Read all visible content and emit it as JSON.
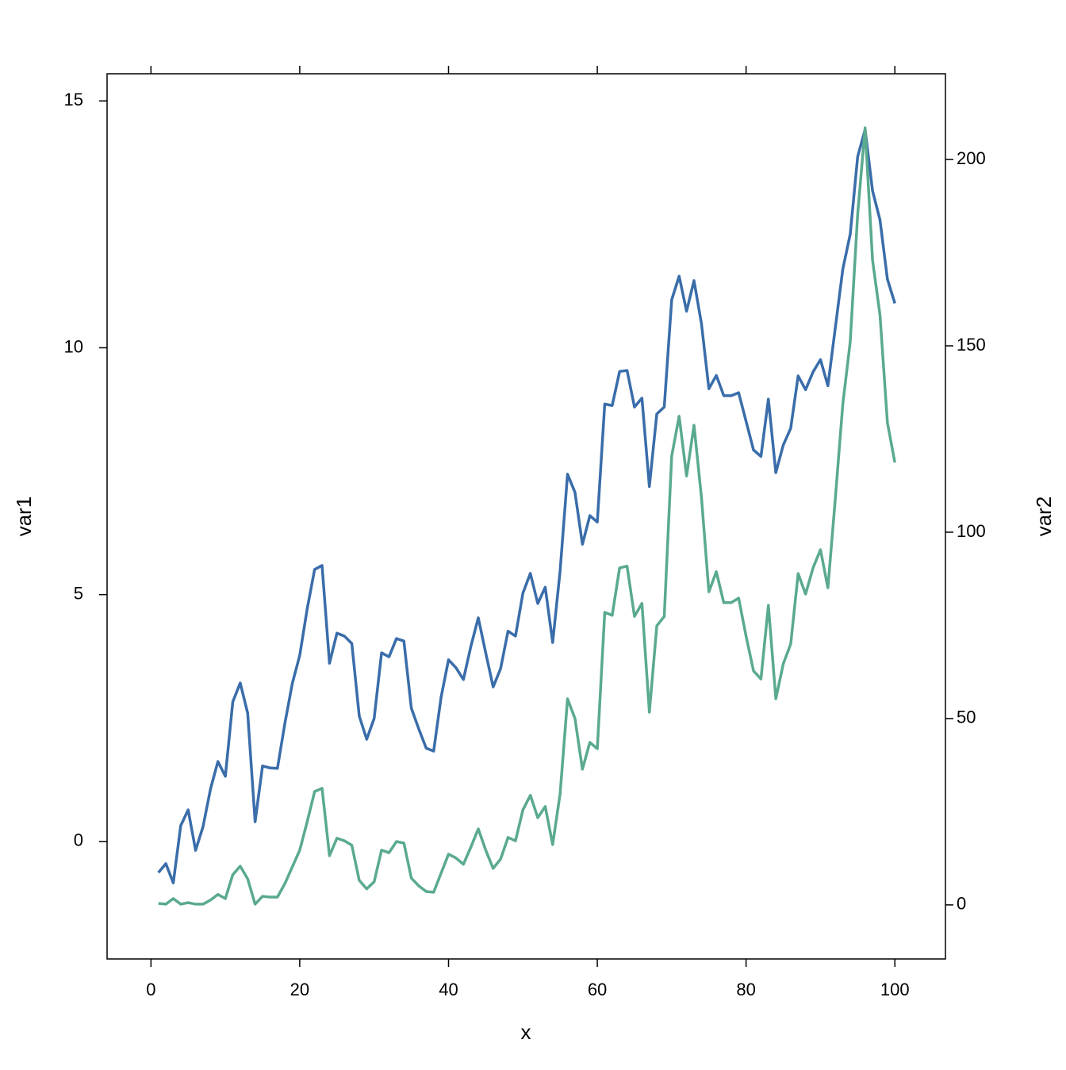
{
  "chart_data": {
    "type": "line",
    "x_label": "x",
    "y_label": "var1",
    "y2_label": "var2",
    "x": [
      1,
      2,
      3,
      4,
      5,
      6,
      7,
      8,
      9,
      10,
      11,
      12,
      13,
      14,
      15,
      16,
      17,
      18,
      19,
      20,
      21,
      22,
      23,
      24,
      25,
      26,
      27,
      28,
      29,
      30,
      31,
      32,
      33,
      34,
      35,
      36,
      37,
      38,
      39,
      40,
      41,
      42,
      43,
      44,
      45,
      46,
      47,
      48,
      49,
      50,
      51,
      52,
      53,
      54,
      55,
      56,
      57,
      58,
      59,
      60,
      61,
      62,
      63,
      64,
      65,
      66,
      67,
      68,
      69,
      70,
      71,
      72,
      73,
      74,
      75,
      76,
      77,
      78,
      79,
      80,
      81,
      82,
      83,
      84,
      85,
      86,
      87,
      88,
      89,
      90,
      91,
      92,
      93,
      94,
      95,
      96,
      97,
      98,
      99,
      100
    ],
    "series": [
      {
        "name": "var1",
        "color": "#3a6daa",
        "values": [
          -0.63,
          -0.45,
          -0.84,
          0.32,
          0.64,
          -0.18,
          0.3,
          1.06,
          1.62,
          1.32,
          2.83,
          3.21,
          2.6,
          0.4,
          1.53,
          1.49,
          1.48,
          2.39,
          3.2,
          3.77,
          4.71,
          5.51,
          5.59,
          3.61,
          4.22,
          4.16,
          4.01,
          2.54,
          2.07,
          2.49,
          3.82,
          3.74,
          4.11,
          4.06,
          2.7,
          2.28,
          1.89,
          1.83,
          2.92,
          3.68,
          3.52,
          3.28,
          3.95,
          4.53,
          3.82,
          3.13,
          3.5,
          4.26,
          4.16,
          5.03,
          5.43,
          4.82,
          5.15,
          4.03,
          5.48,
          7.44,
          7.07,
          6.02,
          6.6,
          6.47,
          8.86,
          8.83,
          9.52,
          9.54,
          8.8,
          8.98,
          7.19,
          8.66,
          8.8,
          10.97,
          11.45,
          10.74,
          11.36,
          10.49,
          9.17,
          9.44,
          9.03,
          9.03,
          9.09,
          8.51,
          7.93,
          7.8,
          8.96,
          7.47,
          8.03,
          8.37,
          9.43,
          9.15,
          9.51,
          9.76,
          9.23,
          10.41,
          11.59,
          12.3,
          13.87,
          14.42,
          13.18,
          12.59,
          11.39,
          10.9
        ]
      },
      {
        "name": "var2",
        "color": "#5aaa8e",
        "axis": "y2",
        "values": [
          0.4,
          0.2,
          1.7,
          0.2,
          0.6,
          0.2,
          0.2,
          1.3,
          2.8,
          1.7,
          8.1,
          10.4,
          7.0,
          0.2,
          2.3,
          2.1,
          2.1,
          5.7,
          10.2,
          14.7,
          22.3,
          30.4,
          31.3,
          13.2,
          17.9,
          17.2,
          16.0,
          6.6,
          4.3,
          6.2,
          14.7,
          14.0,
          17.0,
          16.6,
          7.2,
          5.1,
          3.6,
          3.4,
          8.5,
          13.6,
          12.6,
          10.9,
          15.5,
          20.4,
          14.7,
          9.8,
          12.3,
          18.1,
          17.2,
          25.5,
          29.4,
          23.4,
          26.4,
          16.2,
          29.8,
          55.3,
          50.0,
          36.4,
          43.6,
          41.9,
          78.5,
          77.7,
          90.4,
          90.9,
          77.4,
          80.9,
          51.7,
          74.9,
          77.4,
          120.4,
          131.1,
          115.1,
          128.7,
          109.4,
          84.0,
          89.4,
          81.1,
          81.1,
          82.3,
          72.1,
          62.8,
          60.6,
          80.4,
          55.3,
          64.7,
          70.0,
          88.9,
          83.4,
          90.4,
          95.3,
          85.1,
          109.1,
          134.3,
          151.1,
          185.3,
          208.5,
          173.0,
          158.3,
          129.4,
          118.7
        ]
      }
    ],
    "xlim": [
      -5.9,
      106.8
    ],
    "xticks": [
      0,
      20,
      40,
      60,
      80,
      100
    ],
    "ylim": [
      -2.38,
      15.55
    ],
    "yticks": [
      0,
      5,
      10,
      15
    ],
    "y2lim": [
      -14.5,
      223
    ],
    "y2ticks": [
      0,
      50,
      100,
      150,
      200
    ]
  }
}
